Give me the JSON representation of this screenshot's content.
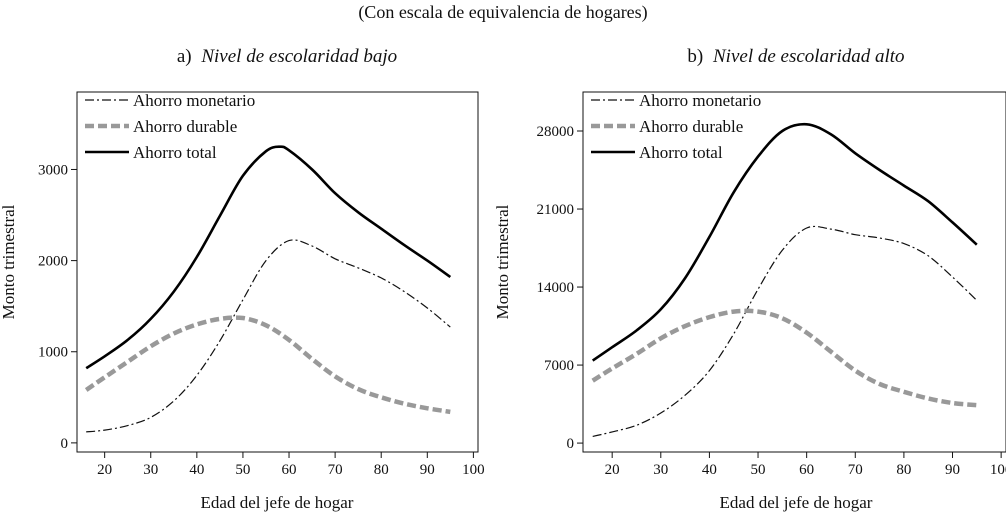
{
  "figure": {
    "subtitle": "(Con escala de equivalencia de hogares)"
  },
  "chart_data": [
    {
      "type": "line",
      "title_prefix": "a)",
      "title": "Nivel de escolaridad bajo",
      "xlabel": "Edad del jefe de hogar",
      "ylabel": "Monto trimestral",
      "xlim": [
        14,
        101
      ],
      "ylim": [
        -100,
        3850
      ],
      "xticks": [
        20,
        30,
        40,
        50,
        60,
        70,
        80,
        90,
        100
      ],
      "yticks": [
        0,
        1000,
        2000,
        3000
      ],
      "ytick_labels": [
        "0",
        "1000",
        "2000",
        "3000"
      ],
      "legend_position": "top-left",
      "grid": false,
      "series": [
        {
          "name": "Ahorro monetario",
          "style": "dash-dot",
          "color": "#111111",
          "x": [
            16,
            20,
            25,
            30,
            35,
            40,
            45,
            50,
            55,
            60,
            65,
            70,
            75,
            80,
            85,
            90,
            95
          ],
          "y": [
            120,
            140,
            190,
            280,
            460,
            740,
            1120,
            1570,
            2000,
            2220,
            2160,
            2020,
            1920,
            1810,
            1660,
            1480,
            1270
          ]
        },
        {
          "name": "Ahorro durable",
          "style": "dashed-thick",
          "color": "#999999",
          "x": [
            16,
            20,
            25,
            30,
            35,
            40,
            45,
            50,
            55,
            60,
            65,
            70,
            75,
            80,
            85,
            90,
            95
          ],
          "y": [
            580,
            720,
            890,
            1060,
            1200,
            1300,
            1360,
            1370,
            1290,
            1130,
            920,
            730,
            590,
            500,
            430,
            380,
            340
          ]
        },
        {
          "name": "Ahorro total",
          "style": "solid",
          "color": "#000000",
          "x": [
            16,
            20,
            25,
            30,
            35,
            40,
            45,
            50,
            55,
            58,
            60,
            65,
            70,
            75,
            80,
            85,
            90,
            95
          ],
          "y": [
            820,
            950,
            1130,
            1360,
            1660,
            2040,
            2490,
            2930,
            3200,
            3250,
            3210,
            3000,
            2740,
            2530,
            2350,
            2170,
            2000,
            1820
          ]
        }
      ]
    },
    {
      "type": "line",
      "title_prefix": "b)",
      "title": "Nivel de escolaridad alto",
      "xlabel": "Edad del jefe de hogar",
      "ylabel": "Monto trimestral",
      "xlim": [
        14,
        101
      ],
      "ylim": [
        -800,
        31500
      ],
      "xticks": [
        20,
        30,
        40,
        50,
        60,
        70,
        80,
        90,
        100
      ],
      "yticks": [
        0,
        7000,
        14000,
        21000,
        28000
      ],
      "ytick_labels": [
        "0",
        "7000",
        "14000",
        "21000",
        "28000"
      ],
      "legend_position": "top-left",
      "grid": false,
      "series": [
        {
          "name": "Ahorro monetario",
          "style": "dash-dot",
          "color": "#111111",
          "x": [
            16,
            20,
            25,
            30,
            35,
            40,
            45,
            50,
            55,
            60,
            65,
            70,
            75,
            80,
            85,
            90,
            95
          ],
          "y": [
            600,
            1000,
            1600,
            2700,
            4300,
            6500,
            9800,
            13800,
            17300,
            19300,
            19200,
            18700,
            18400,
            17900,
            16800,
            14900,
            12800
          ]
        },
        {
          "name": "Ahorro durable",
          "style": "dashed-thick",
          "color": "#999999",
          "x": [
            16,
            20,
            25,
            30,
            35,
            40,
            45,
            50,
            55,
            60,
            65,
            70,
            75,
            80,
            85,
            90,
            95
          ],
          "y": [
            5600,
            6700,
            8000,
            9400,
            10500,
            11300,
            11800,
            11800,
            11200,
            9900,
            8200,
            6500,
            5300,
            4600,
            4000,
            3600,
            3400
          ]
        },
        {
          "name": "Ahorro total",
          "style": "solid",
          "color": "#000000",
          "x": [
            16,
            20,
            25,
            30,
            35,
            40,
            45,
            50,
            55,
            60,
            65,
            70,
            75,
            80,
            85,
            90,
            95
          ],
          "y": [
            7400,
            8600,
            10100,
            12000,
            14800,
            18500,
            22500,
            25700,
            28000,
            28600,
            27700,
            26000,
            24500,
            23100,
            21700,
            19800,
            17800
          ]
        }
      ]
    }
  ]
}
